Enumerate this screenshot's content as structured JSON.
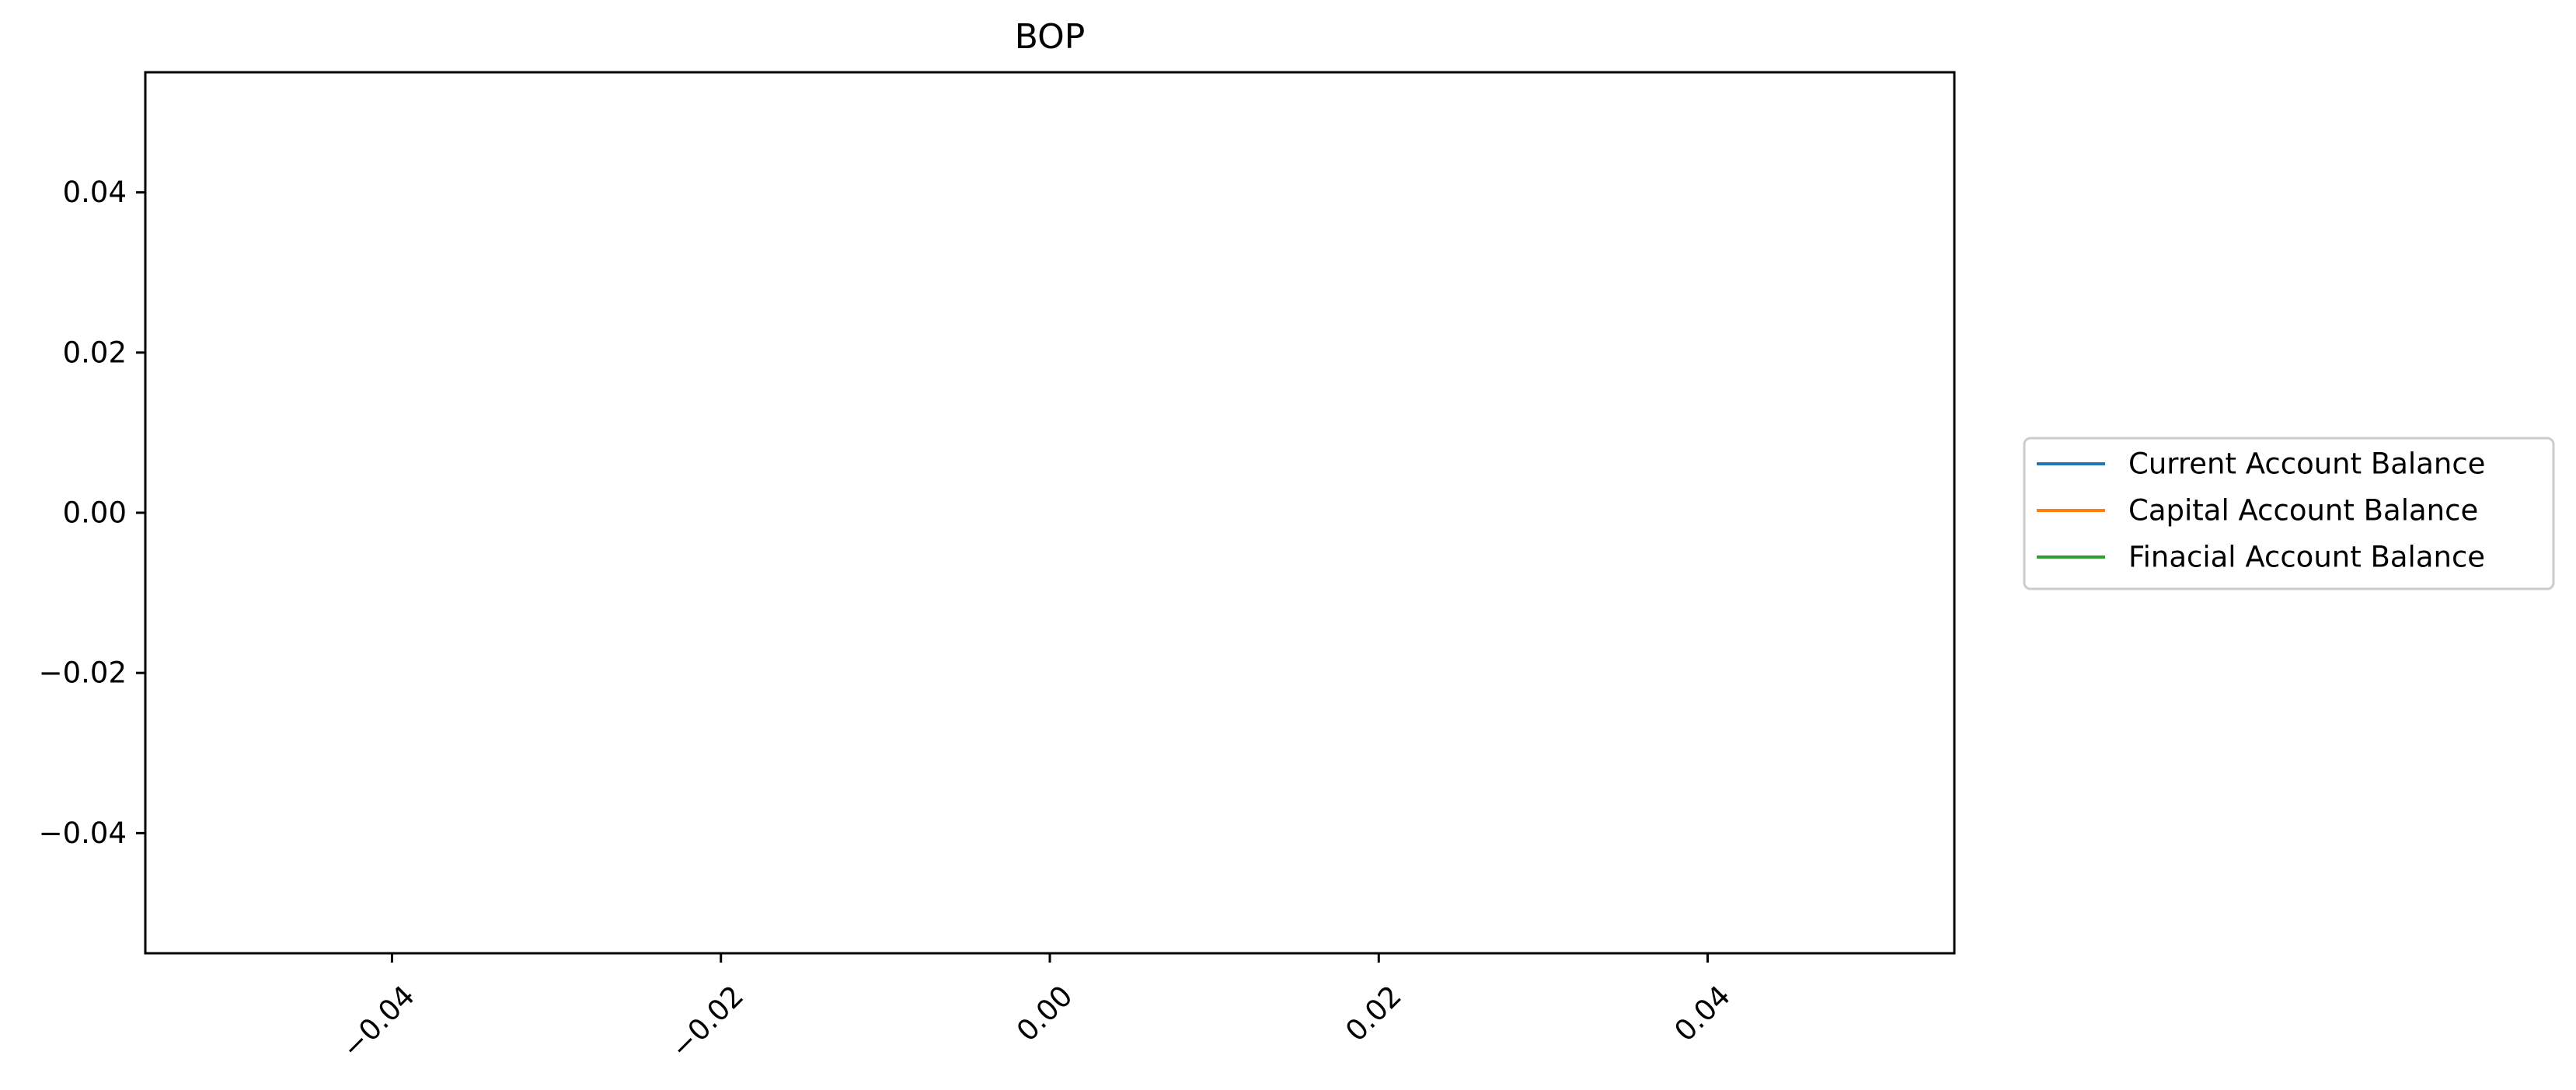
{
  "chart_data": {
    "type": "line",
    "title": "BOP",
    "xlabel": "",
    "ylabel": "",
    "xlim": [
      -0.055,
      0.055
    ],
    "ylim": [
      -0.055,
      0.055
    ],
    "x_ticks": [
      -0.04,
      -0.02,
      0.0,
      0.02,
      0.04
    ],
    "x_tick_labels": [
      "−0.04",
      "−0.02",
      "0.00",
      "0.02",
      "0.04"
    ],
    "y_ticks": [
      0.04,
      0.02,
      0.0,
      -0.02,
      -0.04
    ],
    "y_tick_labels": [
      "0.04",
      "0.02",
      "0.00",
      "−0.02",
      "−0.04"
    ],
    "grid": false,
    "legend_position": "right, outside plot area",
    "series": [
      {
        "name": "Current Account Balance",
        "color": "#1f77b4",
        "x": [],
        "y": []
      },
      {
        "name": "Capital Account Balance",
        "color": "#ff7f0e",
        "x": [],
        "y": []
      },
      {
        "name": "Finacial Account Balance",
        "color": "#2ca02c",
        "x": [],
        "y": []
      }
    ]
  }
}
